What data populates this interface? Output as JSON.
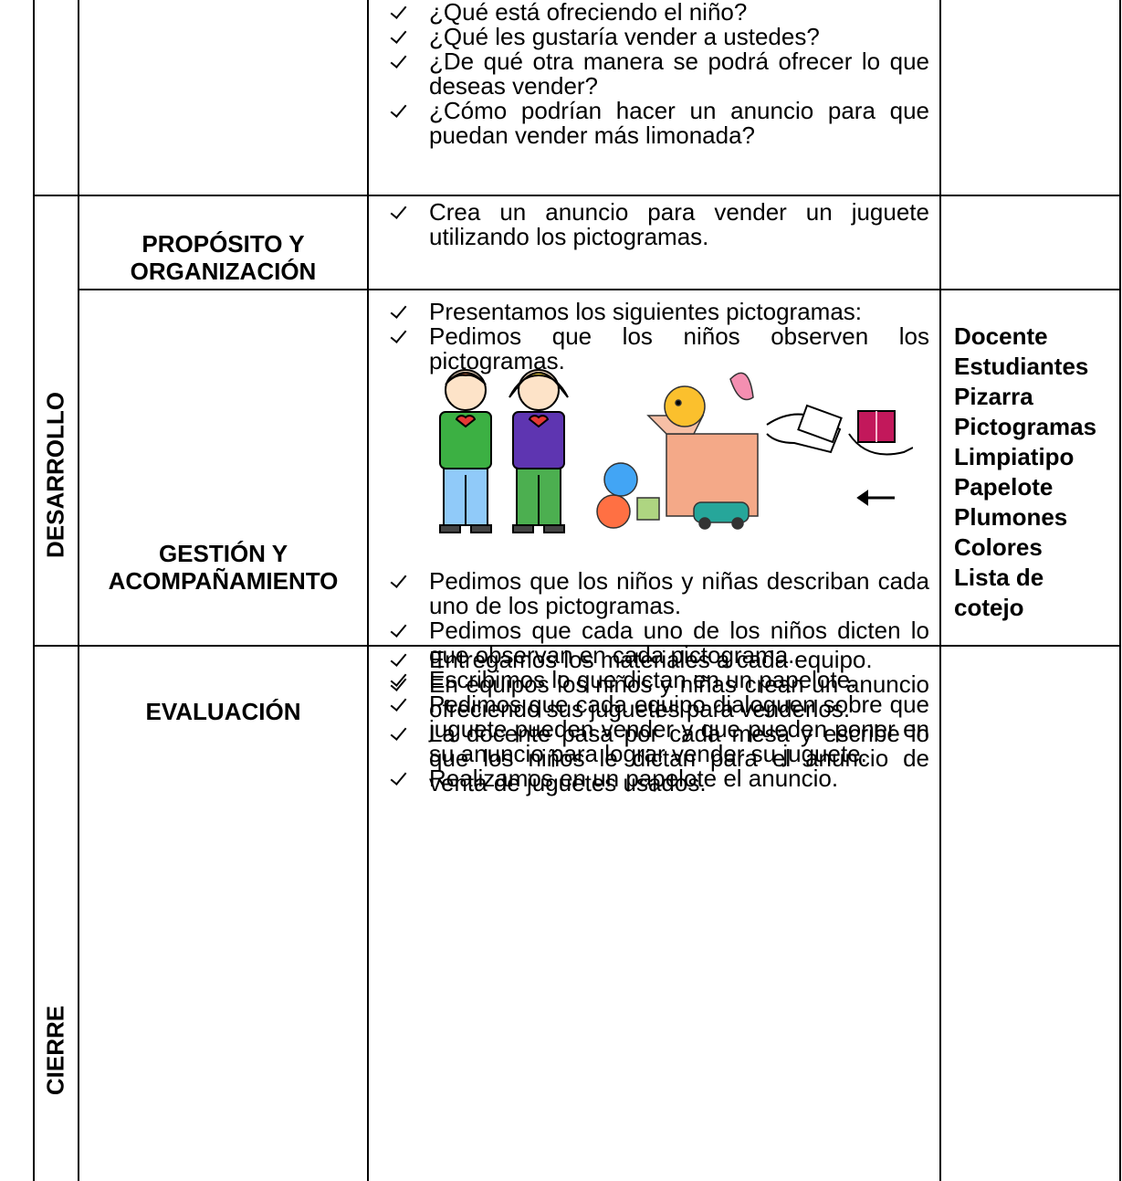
{
  "table": {
    "rows": [
      {
        "items": [
          "¿Qué está ofreciendo el niño?",
          "¿Qué les gustaría vender a ustedes?",
          "¿De qué otra manera se podrá ofrecer lo que deseas vender?",
          "¿Cómo podrían hacer un anuncio para que puedan vender más limonada?"
        ]
      },
      {
        "stage": "DESARROLLO",
        "section": "PROPÓSITO Y ORGANIZACIÓN",
        "items": [
          "Crea un anuncio para vender un juguete utilizando los pictogramas."
        ]
      },
      {
        "section": "GESTIÓN Y ACOMPAÑAMIENTO",
        "items": [
          "Presentamos los siguientes pictogramas:",
          "Pedimos que los niños observen los pictogramas."
        ],
        "items_after": [
          "Pedimos que los niños y niñas describan cada uno de los pictogramas.",
          "Pedimos que cada uno de los niños dicten lo que observan en cada pictograma.",
          "Escribimos lo que dictan en un papelote.",
          "Pedimos que cada equipo dialoguen sobre que juguete pueden vender y que pueden poner en su anuncio para lograr vender su juguete.",
          "Realizamos en un papelote el anuncio."
        ],
        "materials": [
          "Docente",
          "Estudiantes",
          "Pizarra",
          "Pictogramas",
          "Limpiatipo",
          "Papelote",
          "Plumones",
          "Colores",
          "Lista de cotejo"
        ]
      },
      {
        "stage": "CIERRE",
        "section": "EVALUACIÓN",
        "items": [
          "Entregamos los materiales a cada equipo.",
          "En equipos los niños y niñas crean un anuncio ofreciendo sus juguetes para venderlos.",
          "La docente pasa por cada mesa y escribe lo que los niños le dictan para el anuncio de venta de juguetes usados."
        ]
      }
    ]
  }
}
